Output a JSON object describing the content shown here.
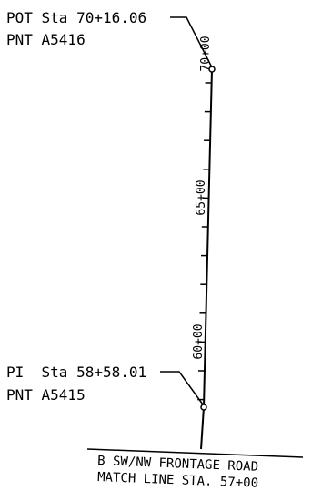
{
  "callouts": {
    "pot": {
      "station": "POT Sta 70+16.06",
      "point": "PNT A5416"
    },
    "pi": {
      "station": "PI  Sta 58+58.01",
      "point": "PNT A5415"
    }
  },
  "stations": {
    "s70": "70+00",
    "s65": "65+00",
    "s60": "60+00"
  },
  "match_line": {
    "line1": "B SW/NW FRONTAGE ROAD",
    "line2": "MATCH LINE STA. 57+00"
  },
  "colors": {
    "ink": "#000000",
    "paper": "#ffffff"
  }
}
